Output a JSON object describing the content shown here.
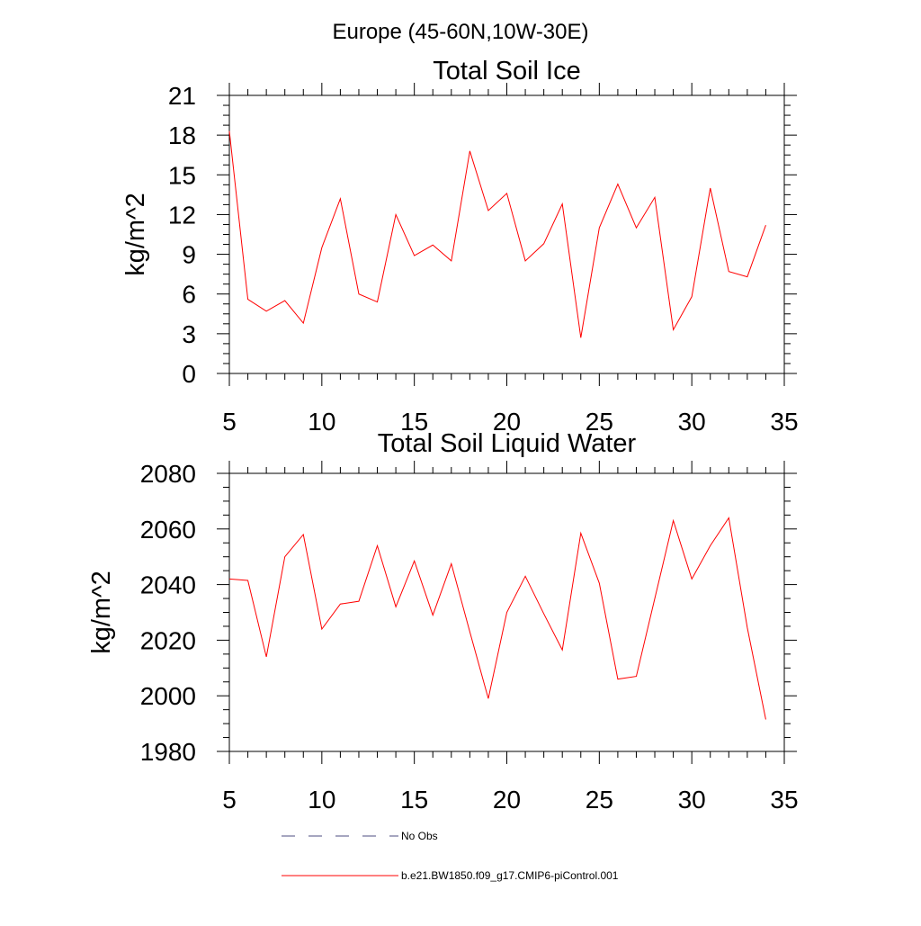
{
  "figure_title": "Europe (45-60N,10W-30E)",
  "colors": {
    "model": "#ff0000",
    "obs": "#4d4d80",
    "frame": "#000000"
  },
  "chart_data": [
    {
      "type": "line",
      "title": "Total Soil Ice",
      "xlabel": "",
      "ylabel": "kg/m^2",
      "xlim": [
        5,
        35
      ],
      "ylim": [
        0,
        21
      ],
      "xticks": [
        5,
        10,
        15,
        20,
        25,
        30,
        35
      ],
      "yticks": [
        0,
        3,
        6,
        9,
        12,
        15,
        18,
        21
      ],
      "x": [
        5,
        6,
        7,
        8,
        9,
        10,
        11,
        12,
        13,
        14,
        15,
        16,
        17,
        18,
        19,
        20,
        21,
        22,
        23,
        24,
        25,
        26,
        27,
        28,
        29,
        30,
        31,
        32,
        33,
        34
      ],
      "series": [
        {
          "name": "b.e21.BW1850.f09_g17.CMIP6-piControl.001",
          "values": [
            18.3,
            5.6,
            4.7,
            5.5,
            3.8,
            9.5,
            13.2,
            6.0,
            5.4,
            12.0,
            8.9,
            9.7,
            8.5,
            16.8,
            12.3,
            13.6,
            8.5,
            9.8,
            12.8,
            2.7,
            11.0,
            14.3,
            11.0,
            13.3,
            3.3,
            5.8,
            14.0,
            7.7,
            7.3,
            11.2
          ]
        }
      ]
    },
    {
      "type": "line",
      "title": "Total Soil Liquid Water",
      "xlabel": "",
      "ylabel": "kg/m^2",
      "xlim": [
        5,
        35
      ],
      "ylim": [
        1980,
        2080
      ],
      "xticks": [
        5,
        10,
        15,
        20,
        25,
        30,
        35
      ],
      "yticks": [
        1980,
        2000,
        2020,
        2040,
        2060,
        2080
      ],
      "x": [
        5,
        6,
        7,
        8,
        9,
        10,
        11,
        12,
        13,
        14,
        15,
        16,
        17,
        18,
        19,
        20,
        21,
        22,
        23,
        24,
        25,
        26,
        27,
        28,
        29,
        30,
        31,
        32,
        33,
        34
      ],
      "series": [
        {
          "name": "b.e21.BW1850.f09_g17.CMIP6-piControl.001",
          "values": [
            2042,
            2041.5,
            2014,
            2050,
            2058,
            2024,
            2033,
            2034,
            2054,
            2032,
            2048.5,
            2029,
            2047.5,
            2023,
            1999,
            2030,
            2043,
            2029.5,
            2016.5,
            2058.5,
            2040.5,
            2006,
            2007,
            2035,
            2063,
            2042,
            2054,
            2064,
            2024.5,
            1991.5
          ]
        }
      ]
    }
  ],
  "legend": {
    "entries": [
      {
        "label": "No Obs",
        "style": "dashed",
        "color": "#4d4d80"
      },
      {
        "label": "b.e21.BW1850.f09_g17.CMIP6-piControl.001",
        "style": "solid",
        "color": "#ff0000"
      }
    ]
  }
}
